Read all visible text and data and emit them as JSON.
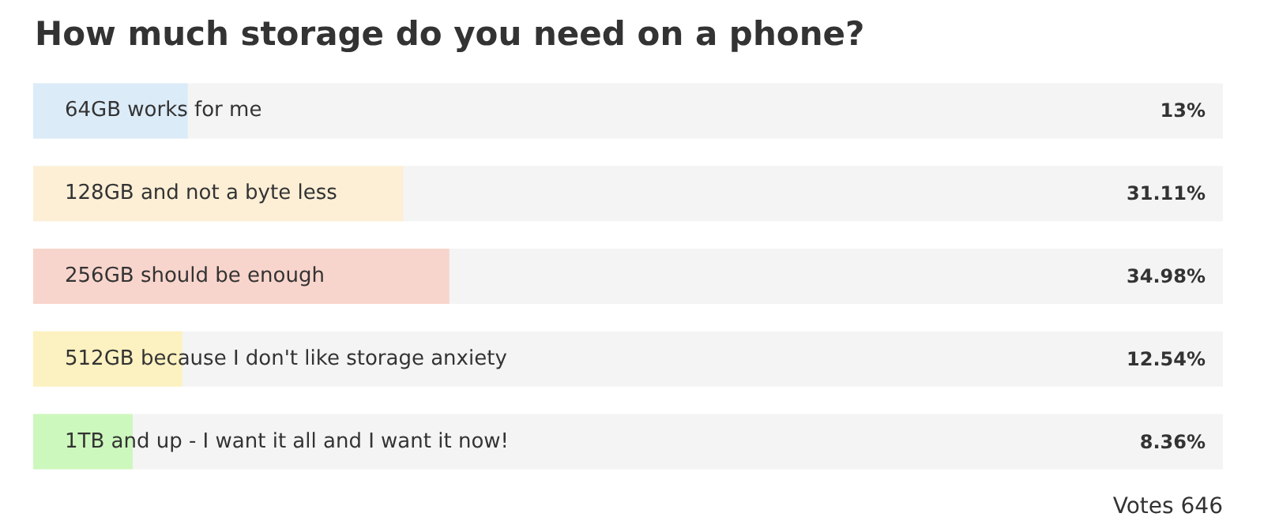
{
  "chart_data": {
    "type": "bar",
    "orientation": "horizontal",
    "title": "How much storage do you need on a phone?",
    "categories": [
      "64GB works for me",
      "128GB and not a byte less",
      "256GB should be enough",
      "512GB because I don't like storage anxiety",
      "1TB and up - I want it all and I want it now!"
    ],
    "values": [
      13,
      31.11,
      34.98,
      12.54,
      8.36
    ],
    "colors": [
      "#dcebf8",
      "#fcefd6",
      "#f8d5cc",
      "#fcf1c0",
      "#cdf8bd"
    ],
    "value_labels": [
      "13%",
      "31.11%",
      "34.98%",
      "12.54%",
      "8.36%"
    ],
    "xlim": [
      0,
      100
    ],
    "annotations": [
      "Votes 646"
    ]
  }
}
